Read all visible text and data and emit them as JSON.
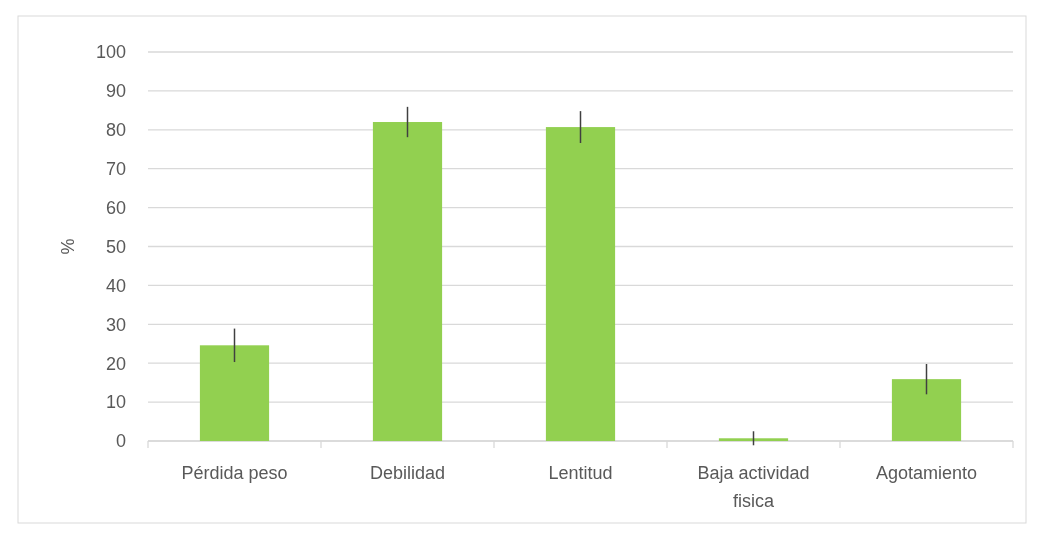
{
  "chart_data": {
    "type": "bar",
    "ylabel": "%",
    "categories": [
      "Pérdida peso",
      "Debilidad",
      "Lentitud",
      "Baja actividad fisica",
      "Agotamiento"
    ],
    "values": [
      24.6,
      82.0,
      80.7,
      0.7,
      15.9
    ],
    "errors": [
      4.3,
      3.9,
      4.1,
      1.8,
      3.9
    ],
    "color": "#92d050",
    "ylim": [
      0,
      100
    ],
    "yticks": [
      0,
      10,
      20,
      30,
      40,
      50,
      60,
      70,
      80,
      90,
      100
    ],
    "grid": "y"
  }
}
